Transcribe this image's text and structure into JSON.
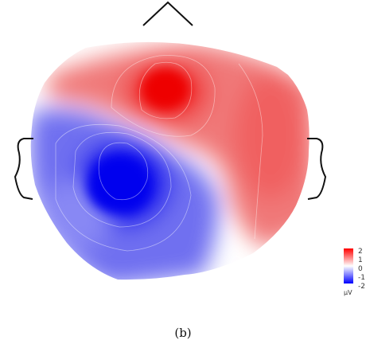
{
  "figure": {
    "caption": "(b)"
  },
  "colorbar": {
    "ticks": [
      "2",
      "1",
      "0",
      "-1",
      "-2"
    ],
    "unit": "µV",
    "min": -2,
    "max": 2,
    "colors": {
      "positive": "#ff0000",
      "neutral": "#ffffff",
      "negative": "#0000ff"
    }
  },
  "head_outline": {
    "nose": "nose-icon",
    "left_ear": "left-ear-icon",
    "right_ear": "right-ear-icon",
    "stroke": "#111111"
  }
}
